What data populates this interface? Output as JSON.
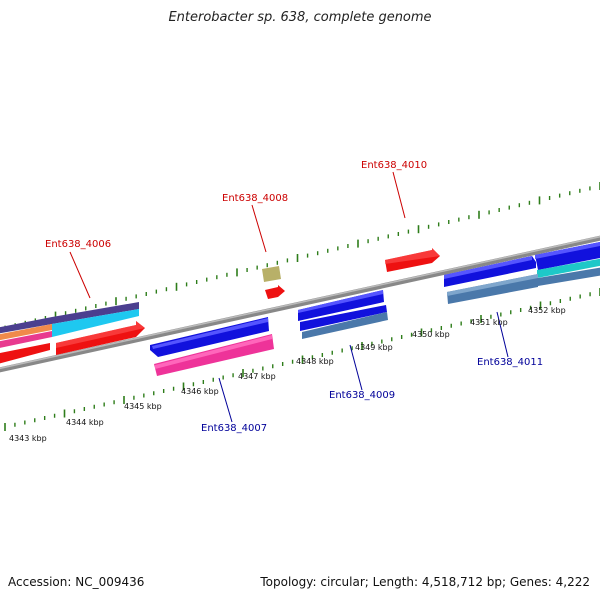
{
  "title": "Enterobacter sp. 638, complete genome",
  "accession": "Accession: NC_009436",
  "summary": "Topology: circular; Length: 4,518,712 bp; Genes: 4,222",
  "colors": {
    "top_label": "#cc0000",
    "bottom_label": "#000099",
    "tick": "#2e7d1a",
    "backbone": "#888888"
  },
  "kbp_labels": [
    "4343 kbp",
    "4344 kbp",
    "4345 kbp",
    "4346 kbp",
    "4347 kbp",
    "4348 kbp",
    "4349 kbp",
    "4350 kbp",
    "4351 kbp",
    "4352 kbp"
  ],
  "gene_labels_top": [
    "Ent638_4006",
    "Ent638_4008",
    "Ent638_4010"
  ],
  "gene_labels_bottom": [
    "Ent638_4007",
    "Ent638_4009",
    "Ent638_4011"
  ]
}
